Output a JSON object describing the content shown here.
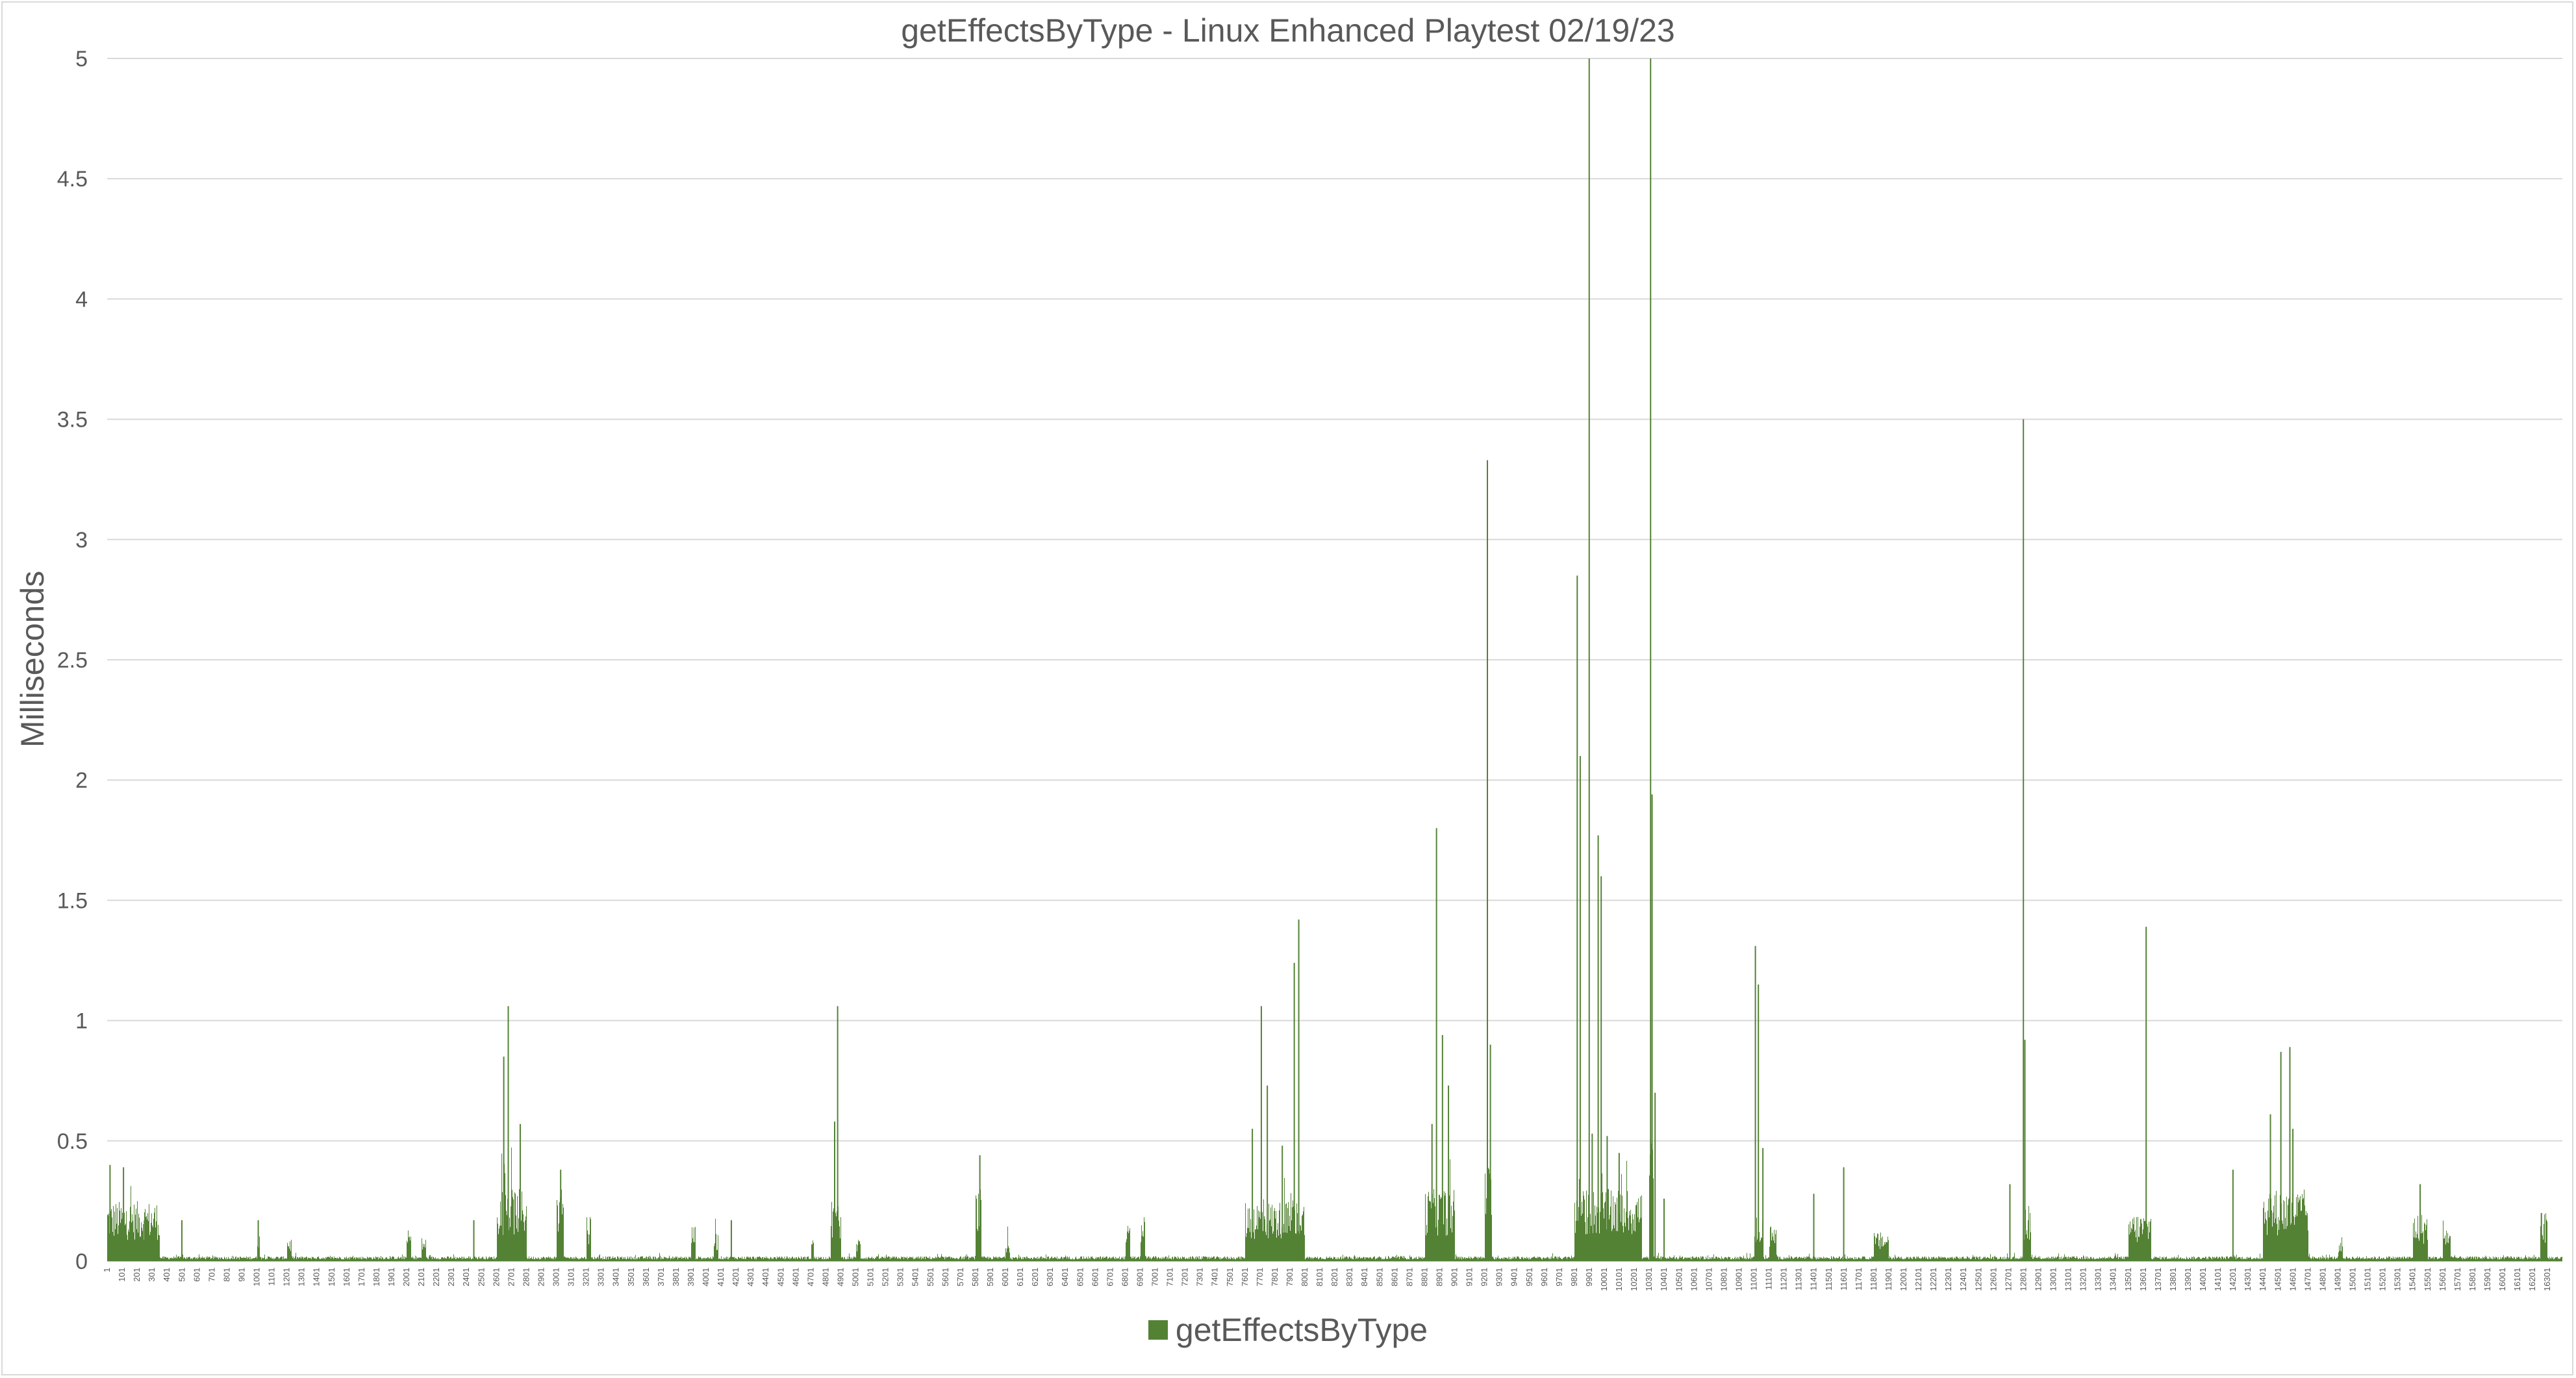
{
  "chart_data": {
    "type": "bar",
    "title": "getEffectsByType - Linux Enhanced Playtest 02/19/23",
    "xlabel": "",
    "ylabel": "Milliseconds",
    "ylim": [
      0,
      5
    ],
    "yticks": [
      "0",
      "0.5",
      "1",
      "1.5",
      "2",
      "2.5",
      "3",
      "3.5",
      "4",
      "4.5",
      "5"
    ],
    "x_range": [
      1,
      16400
    ],
    "xtick_labels": [
      "1",
      "101",
      "201",
      "301",
      "401",
      "501",
      "601",
      "701",
      "801",
      "901",
      "1001",
      "1101",
      "1201",
      "1301",
      "1401",
      "1501",
      "1601",
      "1701",
      "1801",
      "1901",
      "2001",
      "2101",
      "2201",
      "2301",
      "2401",
      "2501",
      "2601",
      "2701",
      "2801",
      "2901",
      "3001",
      "3101",
      "3201",
      "3301",
      "3401",
      "3501",
      "3601",
      "3701",
      "3801",
      "3901",
      "4001",
      "4101",
      "4201",
      "4301",
      "4401",
      "4501",
      "4601",
      "4701",
      "4801",
      "4901",
      "5001",
      "5101",
      "5201",
      "5301",
      "5401",
      "5501",
      "5601",
      "5701",
      "5801",
      "5901",
      "6001",
      "6101",
      "6201",
      "6301",
      "6401",
      "6501",
      "6601",
      "6701",
      "6801",
      "6901",
      "7001",
      "7101",
      "7201",
      "7301",
      "7401",
      "7501",
      "7601",
      "7701",
      "7801",
      "7901",
      "8001",
      "8101",
      "8201",
      "8301",
      "8401",
      "8501",
      "8601",
      "8701",
      "8801",
      "8901",
      "9001",
      "9101",
      "9201",
      "9301",
      "9401",
      "9501",
      "9601",
      "9701",
      "9801",
      "9901",
      "10001",
      "10101",
      "10201",
      "10301",
      "10401",
      "10501",
      "10601",
      "10701",
      "10801",
      "10901",
      "11001",
      "11101",
      "11201",
      "11301",
      "11401",
      "11501",
      "11601",
      "11701",
      "11801",
      "11901",
      "12001",
      "12101",
      "12201",
      "12301",
      "12401",
      "12501",
      "12601",
      "12701",
      "12801",
      "12901",
      "13001",
      "13101",
      "13201",
      "13301",
      "13401",
      "13501",
      "13601",
      "13701",
      "13801",
      "13901",
      "14001",
      "14101",
      "14201",
      "14301",
      "14401",
      "14501",
      "14601",
      "14701",
      "14801",
      "14901",
      "15001",
      "15101",
      "15201",
      "15301",
      "15401",
      "15501",
      "15601",
      "15701",
      "15801",
      "15901",
      "16001",
      "16101",
      "16201",
      "16301"
    ],
    "grid": true,
    "legend_position": "bottom",
    "color": "#548235",
    "series": [
      {
        "name": "getEffectsByType",
        "baseline": 0.02,
        "bursts": [
          {
            "x": [
              1,
              350
            ],
            "level": 0.25
          },
          {
            "x": [
              1000,
              1020
            ],
            "level": 0.15
          },
          {
            "x": [
              1200,
              1230
            ],
            "level": 0.1
          },
          {
            "x": [
              2000,
              2030
            ],
            "level": 0.13
          },
          {
            "x": [
              2100,
              2130
            ],
            "level": 0.1
          },
          {
            "x": [
              2600,
              2800
            ],
            "level": 0.3
          },
          {
            "x": [
              3000,
              3050
            ],
            "level": 0.3
          },
          {
            "x": [
              3200,
              3230
            ],
            "level": 0.2
          },
          {
            "x": [
              3900,
              3930
            ],
            "level": 0.15
          },
          {
            "x": [
              4050,
              4080
            ],
            "level": 0.12
          },
          {
            "x": [
              4700,
              4720
            ],
            "level": 0.1
          },
          {
            "x": [
              4830,
              4900
            ],
            "level": 0.25
          },
          {
            "x": [
              5000,
              5030
            ],
            "level": 0.1
          },
          {
            "x": [
              5800,
              5840
            ],
            "level": 0.3
          },
          {
            "x": [
              6000,
              6030
            ],
            "level": 0.1
          },
          {
            "x": [
              6800,
              6830
            ],
            "level": 0.15
          },
          {
            "x": [
              6900,
              6930
            ],
            "level": 0.2
          },
          {
            "x": [
              7600,
              8000
            ],
            "level": 0.25
          },
          {
            "x": [
              8800,
              9000
            ],
            "level": 0.3
          },
          {
            "x": [
              9200,
              9250
            ],
            "level": 0.4
          },
          {
            "x": [
              9800,
              10250
            ],
            "level": 0.3
          },
          {
            "x": [
              10300,
              10330
            ],
            "level": 0.5
          },
          {
            "x": [
              11000,
              11060
            ],
            "level": 0.2
          },
          {
            "x": [
              11100,
              11150
            ],
            "level": 0.15
          },
          {
            "x": [
              11800,
              11900
            ],
            "level": 0.12
          },
          {
            "x": [
              12800,
              12850
            ],
            "level": 0.25
          },
          {
            "x": [
              13500,
              13650
            ],
            "level": 0.2
          },
          {
            "x": [
              14400,
              14700
            ],
            "level": 0.3
          },
          {
            "x": [
              14900,
              14930
            ],
            "level": 0.1
          },
          {
            "x": [
              15400,
              15500
            ],
            "level": 0.2
          },
          {
            "x": [
              15600,
              15650
            ],
            "level": 0.15
          },
          {
            "x": [
              16250,
              16300
            ],
            "level": 0.2
          }
        ],
        "peaks": [
          {
            "x": 20,
            "y": 0.4
          },
          {
            "x": 110,
            "y": 0.39
          },
          {
            "x": 250,
            "y": 0.17
          },
          {
            "x": 500,
            "y": 0.17
          },
          {
            "x": 1010,
            "y": 0.17
          },
          {
            "x": 2450,
            "y": 0.17
          },
          {
            "x": 2650,
            "y": 0.85
          },
          {
            "x": 2680,
            "y": 1.06
          },
          {
            "x": 2760,
            "y": 0.57
          },
          {
            "x": 3030,
            "y": 0.38
          },
          {
            "x": 4170,
            "y": 0.17
          },
          {
            "x": 4860,
            "y": 0.58
          },
          {
            "x": 4880,
            "y": 1.06
          },
          {
            "x": 5830,
            "y": 0.44
          },
          {
            "x": 7650,
            "y": 0.55
          },
          {
            "x": 7710,
            "y": 1.06
          },
          {
            "x": 7750,
            "y": 0.73
          },
          {
            "x": 7850,
            "y": 0.48
          },
          {
            "x": 7930,
            "y": 1.24
          },
          {
            "x": 7960,
            "y": 1.42
          },
          {
            "x": 8850,
            "y": 0.57
          },
          {
            "x": 8880,
            "y": 1.8
          },
          {
            "x": 8920,
            "y": 0.94
          },
          {
            "x": 8960,
            "y": 0.73
          },
          {
            "x": 9220,
            "y": 3.33
          },
          {
            "x": 9240,
            "y": 0.9
          },
          {
            "x": 9820,
            "y": 2.85
          },
          {
            "x": 9840,
            "y": 2.1
          },
          {
            "x": 9900,
            "y": 5.0
          },
          {
            "x": 9920,
            "y": 0.53
          },
          {
            "x": 9960,
            "y": 1.77
          },
          {
            "x": 9980,
            "y": 1.6
          },
          {
            "x": 10020,
            "y": 0.52
          },
          {
            "x": 10100,
            "y": 0.45
          },
          {
            "x": 10310,
            "y": 5.0
          },
          {
            "x": 10320,
            "y": 1.94
          },
          {
            "x": 10340,
            "y": 0.7
          },
          {
            "x": 10400,
            "y": 0.26
          },
          {
            "x": 11010,
            "y": 1.31
          },
          {
            "x": 11030,
            "y": 1.15
          },
          {
            "x": 11060,
            "y": 0.47
          },
          {
            "x": 11400,
            "y": 0.28
          },
          {
            "x": 11600,
            "y": 0.39
          },
          {
            "x": 12710,
            "y": 0.32
          },
          {
            "x": 12800,
            "y": 3.5
          },
          {
            "x": 12810,
            "y": 0.92
          },
          {
            "x": 13620,
            "y": 1.39
          },
          {
            "x": 14200,
            "y": 0.38
          },
          {
            "x": 14450,
            "y": 0.61
          },
          {
            "x": 14520,
            "y": 0.87
          },
          {
            "x": 14580,
            "y": 0.89
          },
          {
            "x": 14600,
            "y": 0.55
          },
          {
            "x": 15450,
            "y": 0.32
          },
          {
            "x": 16260,
            "y": 0.2
          }
        ]
      }
    ]
  }
}
